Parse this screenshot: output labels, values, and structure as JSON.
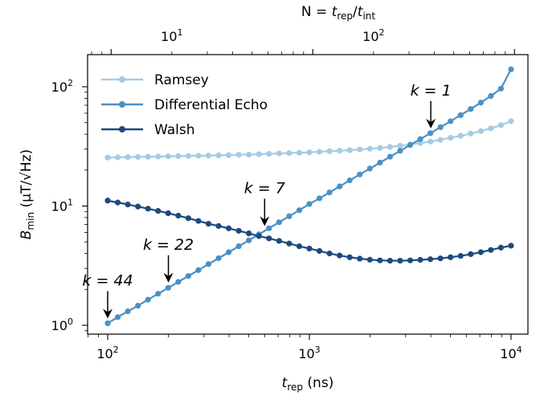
{
  "chart_data": {
    "type": "line",
    "xscale": "log",
    "yscale": "log",
    "xlabel": {
      "base": "t",
      "sub": "rep",
      "unit": " (ns)"
    },
    "ylabel": {
      "base": "B",
      "sub": "min",
      "unit": " (μT/√Hz)"
    },
    "top_xlabel": {
      "lhs": "N = ",
      "num": "t",
      "num_sub": "rep",
      "den": "t",
      "den_sub": "int"
    },
    "xlim": [
      80,
      12500
    ],
    "ylim": [
      0.8,
      180
    ],
    "top_ticks": [
      {
        "label": "10",
        "exp": "1",
        "x": 208
      },
      {
        "label": "10",
        "exp": "2",
        "x": 2080
      }
    ],
    "x_ticks": [
      {
        "label": "10",
        "exp": "2",
        "value": 100
      },
      {
        "label": "10",
        "exp": "3",
        "value": 1000
      },
      {
        "label": "10",
        "exp": "4",
        "value": 10000
      }
    ],
    "y_ticks": [
      {
        "label": "10",
        "exp": "0",
        "value": 1
      },
      {
        "label": "10",
        "exp": "1",
        "value": 10
      },
      {
        "label": "10",
        "exp": "2",
        "value": 100
      }
    ],
    "n_points": 41,
    "series": [
      {
        "name": "Ramsey",
        "color": "#a6cbe4",
        "values": [
          25.5,
          25.6,
          25.7,
          25.8,
          25.9,
          26.0,
          26.1,
          26.2,
          26.3,
          26.4,
          26.5,
          26.6,
          26.7,
          26.9,
          27.0,
          27.2,
          27.4,
          27.6,
          27.8,
          28.0,
          28.2,
          28.5,
          28.8,
          29.1,
          29.4,
          29.8,
          30.2,
          30.7,
          31.3,
          32.0,
          32.8,
          33.7,
          34.7,
          35.9,
          37.3,
          38.8,
          40.5,
          42.5,
          44.8,
          47.6,
          51.5
        ]
      },
      {
        "name": "Differential Echo",
        "color": "#4a91c5",
        "values": [
          1.04,
          1.17,
          1.31,
          1.46,
          1.64,
          1.84,
          2.06,
          2.31,
          2.59,
          2.9,
          3.26,
          3.65,
          4.1,
          4.6,
          5.16,
          5.79,
          6.51,
          7.31,
          8.21,
          9.22,
          10.4,
          11.6,
          13.0,
          14.6,
          16.4,
          18.4,
          20.6,
          23.1,
          25.9,
          29.0,
          32.5,
          36.4,
          40.8,
          45.8,
          51.4,
          57.8,
          65.1,
          73.6,
          83.7,
          96.5,
          140
        ]
      },
      {
        "name": "Walsh",
        "color": "#1c4a80",
        "values": [
          11.1,
          10.7,
          10.3,
          9.9,
          9.5,
          9.1,
          8.7,
          8.3,
          7.9,
          7.5,
          7.1,
          6.8,
          6.5,
          6.2,
          5.9,
          5.6,
          5.35,
          5.1,
          4.85,
          4.6,
          4.4,
          4.2,
          4.0,
          3.85,
          3.72,
          3.62,
          3.55,
          3.5,
          3.48,
          3.48,
          3.5,
          3.54,
          3.58,
          3.64,
          3.72,
          3.82,
          3.95,
          4.1,
          4.28,
          4.48,
          4.65
        ]
      }
    ],
    "annotations": [
      {
        "label": "k = 1",
        "x": 4000,
        "y_data": 40.8
      },
      {
        "label": "k = 7",
        "x": 600,
        "y_data": 6.2
      },
      {
        "label": "k = 22",
        "x": 200,
        "y_data": 2.08
      },
      {
        "label": "k = 44",
        "x": 100,
        "y_data": 1.04
      }
    ],
    "legend_position": "top-left"
  }
}
